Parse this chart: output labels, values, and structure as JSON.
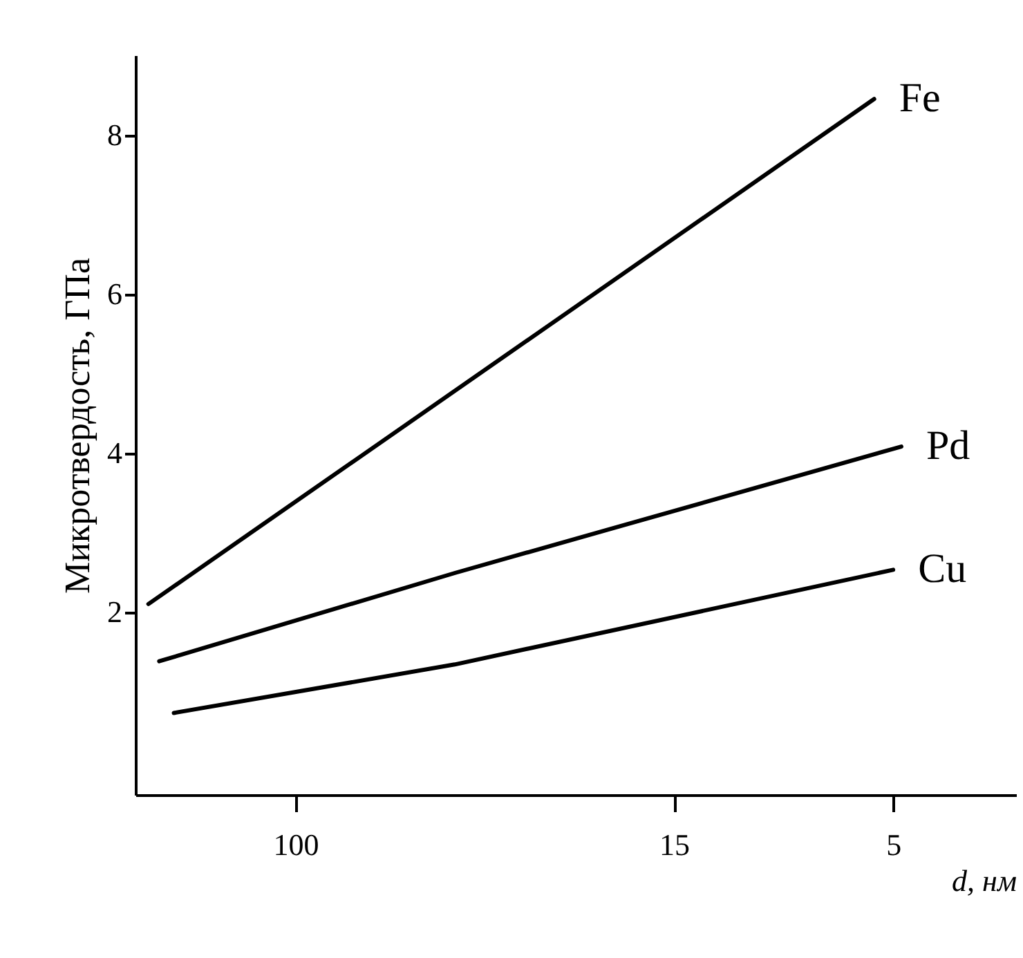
{
  "chart_data": {
    "type": "line",
    "xlabel": "d, нм",
    "ylabel": "Микротвердость, ГПа",
    "xlim": [
      223,
      2.7
    ],
    "xticks": [
      100,
      15,
      5
    ],
    "log": "x",
    "ylim": [
      -0.3,
      9
    ],
    "yticks": [
      2,
      4,
      6,
      8
    ],
    "grid": false,
    "legend": false,
    "marker": "none",
    "line_style": "solid",
    "series": [
      {
        "name": "Fe",
        "color": "#000000",
        "x": [
          209,
          5.5
        ],
        "values": [
          2.1,
          8.45
        ]
      },
      {
        "name": "Pd",
        "color": "#000000",
        "x": [
          198,
          45,
          4.8
        ],
        "values": [
          1.38,
          2.49,
          4.08
        ]
      },
      {
        "name": "Cu",
        "color": "#000000",
        "x": [
          184,
          45,
          5.0
        ],
        "values": [
          0.73,
          1.34,
          2.53
        ]
      }
    ]
  }
}
